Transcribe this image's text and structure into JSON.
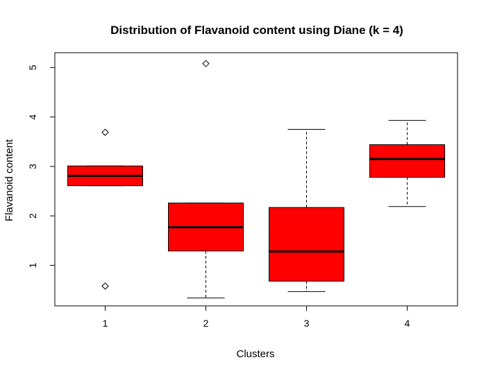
{
  "chart_data": {
    "type": "box",
    "title": "Distribution of Flavanoid content using Diane (k = 4)",
    "xlabel": "Clusters",
    "ylabel": "Flavanoid content",
    "categories": [
      "1",
      "2",
      "3",
      "4"
    ],
    "yticks": [
      "1",
      "2",
      "3",
      "4",
      "5"
    ],
    "ylim": [
      0.18,
      5.3
    ],
    "box_color": "#ff0000",
    "outline_color": "#000000",
    "grid": false,
    "legend": "none",
    "boxes": [
      {
        "category": "1",
        "whisker_low": 2.61,
        "q1": 2.61,
        "median": 2.81,
        "q3": 3.01,
        "whisker_high": 3.01,
        "outliers": [
          3.69,
          0.58
        ]
      },
      {
        "category": "2",
        "whisker_low": 0.34,
        "q1": 1.29,
        "median": 1.77,
        "q3": 2.26,
        "whisker_high": 2.26,
        "outliers": [
          5.08
        ]
      },
      {
        "category": "3",
        "whisker_low": 0.47,
        "q1": 0.68,
        "median": 1.28,
        "q3": 2.17,
        "whisker_high": 3.75,
        "outliers": []
      },
      {
        "category": "4",
        "whisker_low": 2.19,
        "q1": 2.78,
        "median": 3.15,
        "q3": 3.44,
        "whisker_high": 3.93,
        "outliers": []
      }
    ]
  }
}
